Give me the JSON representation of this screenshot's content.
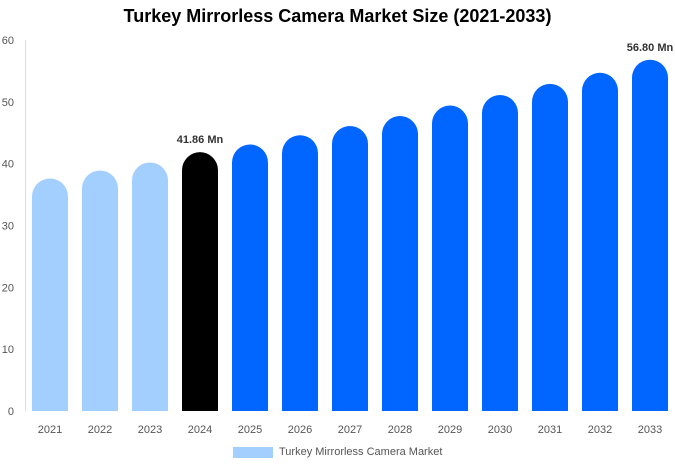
{
  "chart_data": {
    "type": "bar",
    "title": "Turkey Mirrorless Camera Market Size (2021-2033)",
    "categories": [
      "2021",
      "2022",
      "2023",
      "2024",
      "2025",
      "2026",
      "2027",
      "2028",
      "2029",
      "2030",
      "2031",
      "2032",
      "2033"
    ],
    "series": [
      {
        "name": "Turkey Mirrorless Camera Market",
        "values": [
          37.6,
          38.9,
          40.2,
          41.86,
          43.1,
          44.6,
          46.1,
          47.7,
          49.4,
          51.1,
          52.9,
          54.7,
          56.8
        ]
      }
    ],
    "data_labels": [
      {
        "category": "2024",
        "text": "41.86 Mn"
      },
      {
        "category": "2033",
        "text": "56.80 Mn"
      }
    ],
    "ylim": [
      0,
      60
    ],
    "yticks": [
      0,
      10,
      20,
      30,
      40,
      50,
      60
    ],
    "xlabel": "",
    "ylabel": "",
    "grid": false,
    "legend": "bottom",
    "colors": {
      "historical": "#a3cfff",
      "current": "#000000",
      "forecast": "#0066ff"
    }
  }
}
